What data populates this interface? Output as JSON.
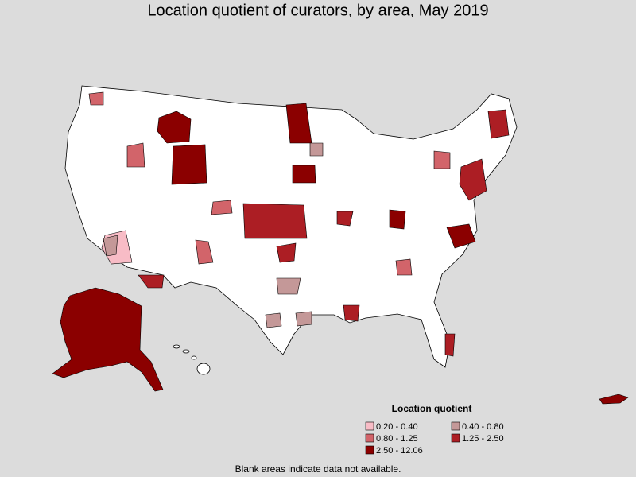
{
  "title": "Location quotient of curators, by area, May 2019",
  "legend": {
    "title": "Location quotient",
    "items": [
      {
        "label": "0.20 - 0.40",
        "color": "#f8bcc6"
      },
      {
        "label": "0.40 - 0.80",
        "color": "#c49898"
      },
      {
        "label": "0.80 - 1.25",
        "color": "#d2646a"
      },
      {
        "label": "1.25 - 2.50",
        "color": "#ac1e24"
      },
      {
        "label": "2.50 - 12.06",
        "color": "#8b0000"
      }
    ]
  },
  "footnote": "Blank areas indicate data not available."
}
